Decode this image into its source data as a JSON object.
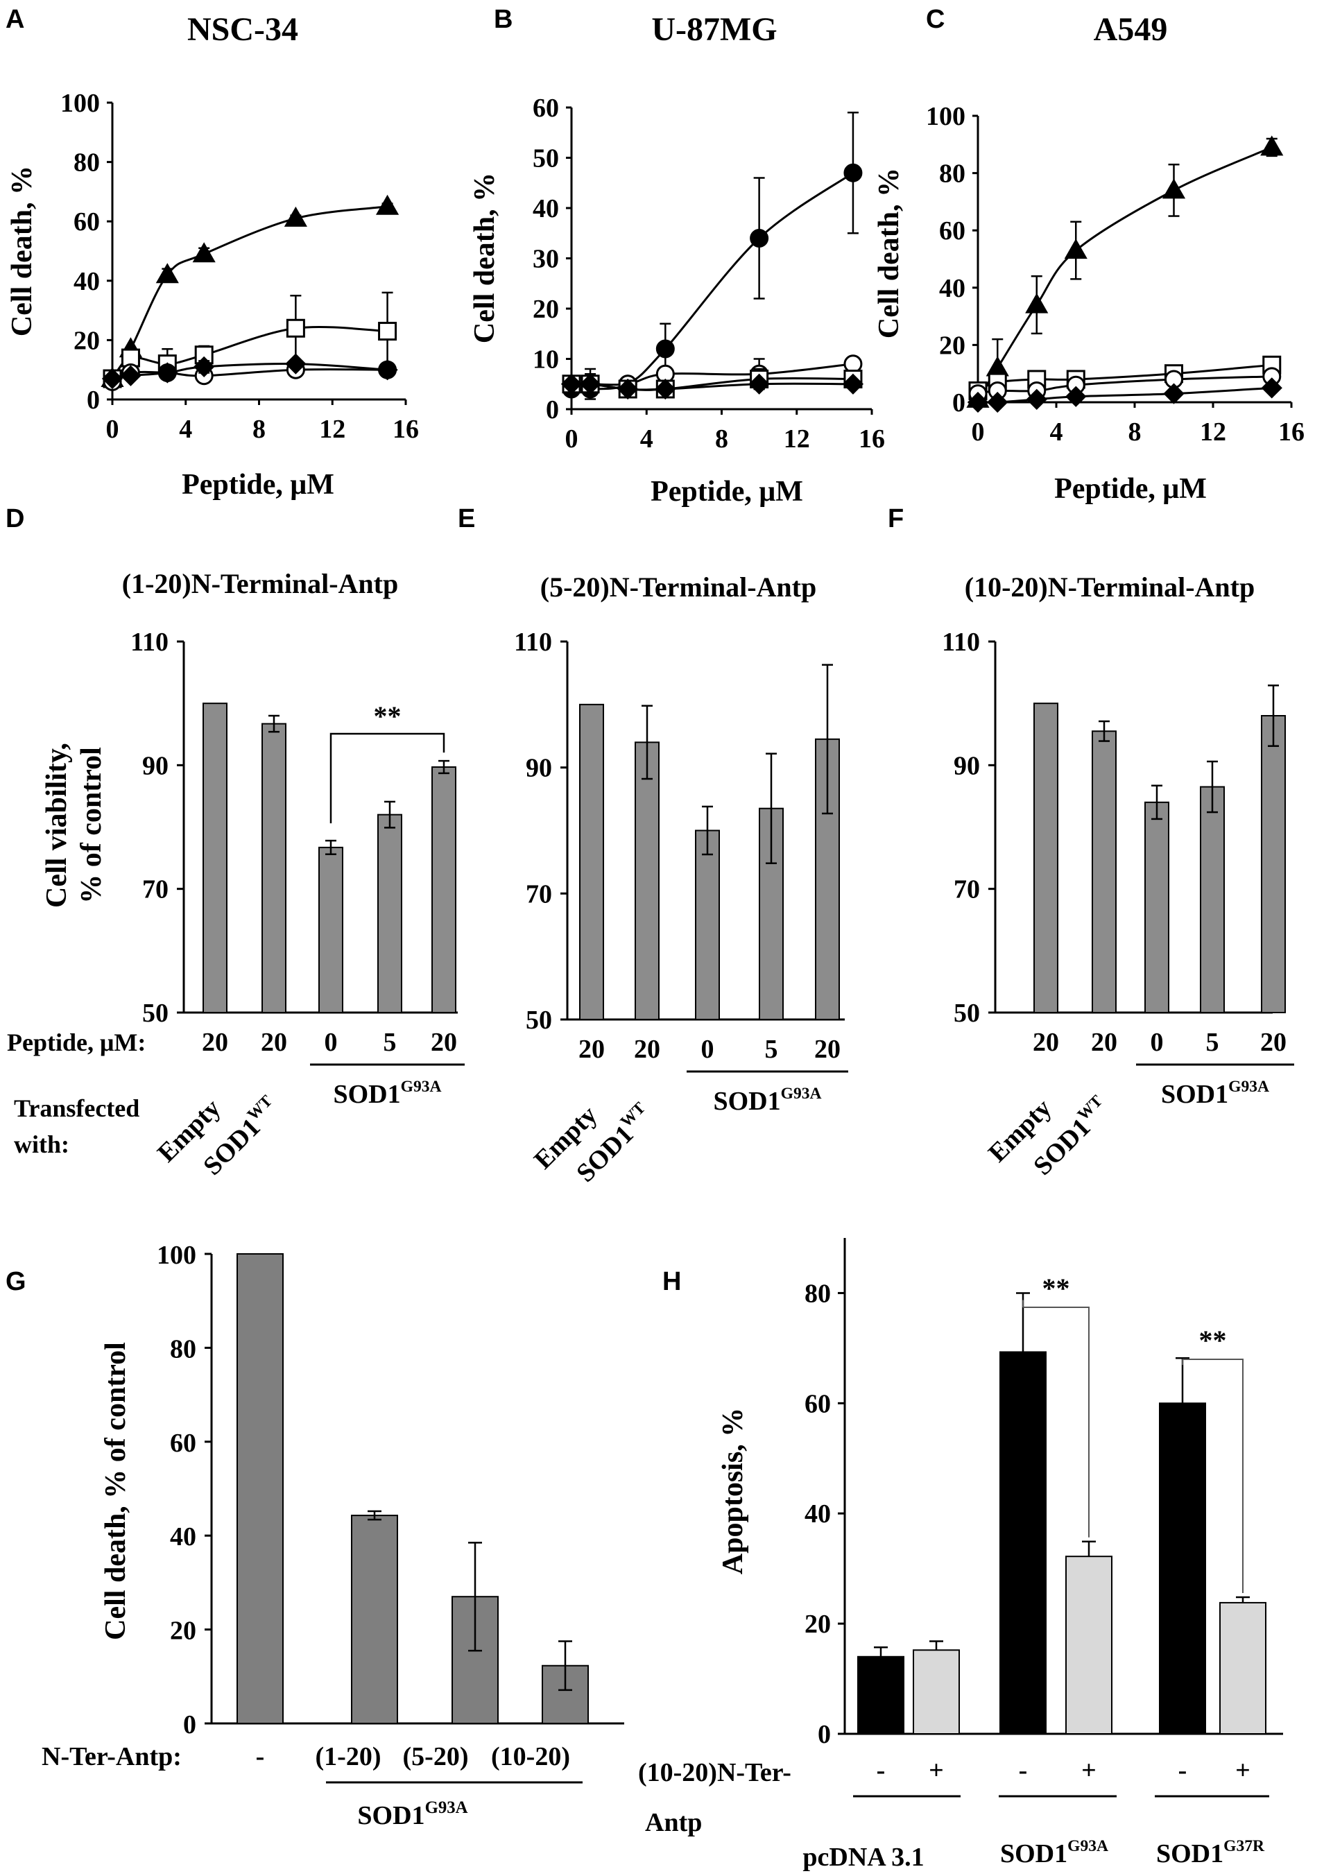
{
  "chart_data": [
    {
      "panel": "A",
      "type": "scatter",
      "title": "NSC-34",
      "xlabel": "Peptide, μM",
      "ylabel": "Cell death, %",
      "xlim": [
        0,
        16
      ],
      "ylim": [
        0,
        100
      ],
      "xticks": [
        0,
        4,
        8,
        12,
        16
      ],
      "yticks": [
        0,
        20,
        40,
        60,
        80,
        100
      ],
      "series": [
        {
          "name": "filled-triangle",
          "marker": "triangle",
          "filled": true,
          "x": [
            0,
            1,
            3,
            5,
            10,
            15
          ],
          "y": [
            7,
            17,
            42,
            49,
            61,
            65
          ],
          "err": [
            0,
            0,
            2,
            2,
            1,
            1
          ]
        },
        {
          "name": "open-square",
          "marker": "square",
          "filled": false,
          "x": [
            0,
            1,
            3,
            5,
            10,
            15
          ],
          "y": [
            7,
            14,
            12,
            15,
            24,
            23
          ],
          "err": [
            0,
            0,
            5,
            3,
            11,
            13
          ]
        },
        {
          "name": "open-circle",
          "marker": "circle",
          "filled": false,
          "x": [
            0,
            1,
            3,
            5,
            10,
            15
          ],
          "y": [
            6,
            9,
            9,
            8,
            10,
            10
          ],
          "err": [
            0,
            0,
            0,
            0,
            0,
            0
          ]
        },
        {
          "name": "filled-diamond",
          "marker": "diamond",
          "filled": true,
          "x": [
            0,
            1,
            3,
            5,
            10,
            15
          ],
          "y": [
            7,
            8,
            9,
            11,
            12,
            10
          ],
          "err": [
            0,
            0,
            0,
            2,
            0,
            0
          ]
        }
      ]
    },
    {
      "panel": "B",
      "type": "scatter",
      "title": "U-87MG",
      "xlabel": "Peptide, μM",
      "ylabel": "Cell death, %",
      "xlim": [
        0,
        16
      ],
      "ylim": [
        0,
        60
      ],
      "xticks": [
        0,
        4,
        8,
        12,
        16
      ],
      "yticks": [
        0,
        10,
        20,
        30,
        40,
        50,
        60
      ],
      "series": [
        {
          "name": "filled-circle",
          "marker": "circle",
          "filled": true,
          "x": [
            0,
            1,
            3,
            5,
            10,
            15
          ],
          "y": [
            4,
            4,
            5,
            12,
            34,
            47
          ],
          "err": [
            0,
            0,
            0,
            5,
            12,
            12
          ]
        },
        {
          "name": "open-circle",
          "marker": "circle",
          "filled": false,
          "x": [
            0,
            1,
            3,
            5,
            10,
            15
          ],
          "y": [
            5,
            5,
            5,
            7,
            7,
            9
          ],
          "err": [
            0,
            3,
            0,
            0,
            3,
            0
          ]
        },
        {
          "name": "open-square",
          "marker": "square",
          "filled": false,
          "x": [
            0,
            1,
            3,
            5,
            10,
            15
          ],
          "y": [
            5,
            5,
            4,
            4,
            6,
            6
          ],
          "err": [
            0,
            2,
            0,
            0,
            2,
            0
          ]
        },
        {
          "name": "filled-diamond",
          "marker": "diamond",
          "filled": true,
          "x": [
            0,
            1,
            3,
            5,
            10,
            15
          ],
          "y": [
            5,
            5,
            4,
            4,
            5,
            5
          ],
          "err": [
            0,
            0,
            0,
            0,
            0,
            0
          ]
        }
      ]
    },
    {
      "panel": "C",
      "type": "scatter",
      "title": "A549",
      "xlabel": "Peptide, μM",
      "ylabel": "Cell death, %",
      "xlim": [
        0,
        16
      ],
      "ylim": [
        0,
        100
      ],
      "xticks": [
        0,
        4,
        8,
        12,
        16
      ],
      "yticks": [
        0,
        20,
        40,
        60,
        80,
        100
      ],
      "series": [
        {
          "name": "filled-triangle",
          "marker": "triangle",
          "filled": true,
          "x": [
            0,
            1,
            3,
            5,
            10,
            15
          ],
          "y": [
            1,
            12,
            34,
            53,
            74,
            89
          ],
          "err": [
            0,
            10,
            10,
            10,
            9,
            3
          ]
        },
        {
          "name": "open-square",
          "marker": "square",
          "filled": false,
          "x": [
            0,
            1,
            3,
            5,
            10,
            15
          ],
          "y": [
            4,
            7,
            8,
            8,
            10,
            13
          ],
          "err": [
            0,
            0,
            0,
            0,
            0,
            0
          ]
        },
        {
          "name": "open-circle",
          "marker": "circle",
          "filled": false,
          "x": [
            0,
            1,
            3,
            5,
            10,
            15
          ],
          "y": [
            3,
            4,
            4,
            6,
            8,
            9
          ],
          "err": [
            0,
            0,
            0,
            0,
            0,
            0
          ]
        },
        {
          "name": "filled-diamond",
          "marker": "diamond",
          "filled": true,
          "x": [
            0,
            1,
            3,
            5,
            10,
            15
          ],
          "y": [
            0,
            0,
            1,
            2,
            3,
            5
          ],
          "err": [
            0,
            0,
            0,
            0,
            0,
            0
          ]
        }
      ]
    },
    {
      "panel": "D",
      "type": "bar",
      "title": "(1-20)N-Terminal-Antp",
      "ylabel": [
        "Cell viability,",
        "% of control"
      ],
      "ylim": [
        50,
        110
      ],
      "yticks": [
        50,
        70,
        90,
        110
      ],
      "categories": [
        "20",
        "20",
        "0",
        "5",
        "20"
      ],
      "values": [
        100,
        96.7,
        76.7,
        82,
        89.7
      ],
      "err": [
        0,
        1.3,
        1.1,
        2.1,
        1.0
      ],
      "groups": [
        "Empty",
        "SOD1",
        "SOD1"
      ],
      "significance": {
        "from": 2,
        "to": 4,
        "label": "**"
      }
    },
    {
      "panel": "E",
      "type": "bar",
      "title": "(5-20)N-Terminal-Antp",
      "ylim": [
        50,
        110
      ],
      "yticks": [
        50,
        70,
        90,
        110
      ],
      "categories": [
        "20",
        "20",
        "0",
        "5",
        "20"
      ],
      "values": [
        100,
        94,
        80,
        83.5,
        94.5
      ],
      "err": [
        0,
        5.8,
        3.8,
        8.7,
        11.8
      ]
    },
    {
      "panel": "F",
      "type": "bar",
      "title": "(10-20)N-Terminal-Antp",
      "ylim": [
        50,
        110
      ],
      "yticks": [
        50,
        70,
        90,
        110
      ],
      "categories": [
        "20",
        "20",
        "0",
        "5",
        "20"
      ],
      "values": [
        100,
        95.5,
        84,
        86.5,
        98
      ],
      "err": [
        0,
        1.6,
        2.7,
        4.1,
        4.9
      ]
    },
    {
      "panel": "G",
      "type": "bar",
      "ylabel": "Cell death, % of control",
      "ylim": [
        0,
        100
      ],
      "yticks": [
        0,
        20,
        40,
        60,
        80,
        100
      ],
      "row_label": "N-Ter-Antp:",
      "categories": [
        "-",
        "(1-20)",
        "(5-20)",
        "(10-20)"
      ],
      "values": [
        100,
        44.3,
        27,
        12.3
      ],
      "err": [
        0,
        0.9,
        11.5,
        5.2
      ],
      "group": "SOD1"
    },
    {
      "panel": "H",
      "type": "bar",
      "ylabel": "Apoptosis, %",
      "ylim": [
        0,
        90
      ],
      "yticks": [
        0,
        20,
        40,
        60,
        80
      ],
      "row_label": "(10-20)N-Ter-",
      "row_label2": "Antp",
      "categories": [
        "-",
        "+",
        "-",
        "+",
        "-",
        "+"
      ],
      "values": [
        14,
        15.2,
        69.3,
        32.2,
        60,
        23.8
      ],
      "err": [
        1.7,
        1.6,
        10.7,
        2.7,
        8.2,
        1
      ],
      "colors": [
        "#000000",
        "#d9d9d9",
        "#000000",
        "#d9d9d9",
        "#000000",
        "#d9d9d9"
      ],
      "groups": [
        "pcDNA 3.1",
        "SOD1",
        "SOD1"
      ],
      "significance": [
        {
          "from": 2,
          "to": 3,
          "label": "**"
        },
        {
          "from": 4,
          "to": 5,
          "label": "**"
        }
      ]
    }
  ],
  "superscripts": {
    "wt": "WT",
    "g93a": "G93A",
    "g37r": "G37R"
  },
  "labels": {
    "peptide_row": "Peptide, μM:",
    "transfected_1": "Transfected",
    "transfected_2": "with:"
  },
  "colors": {
    "bar_gray": "#8c8c8c",
    "bar_light": "#d9d9d9",
    "bar_black": "#000000",
    "bar_dark_gray": "#7f7f7f"
  }
}
